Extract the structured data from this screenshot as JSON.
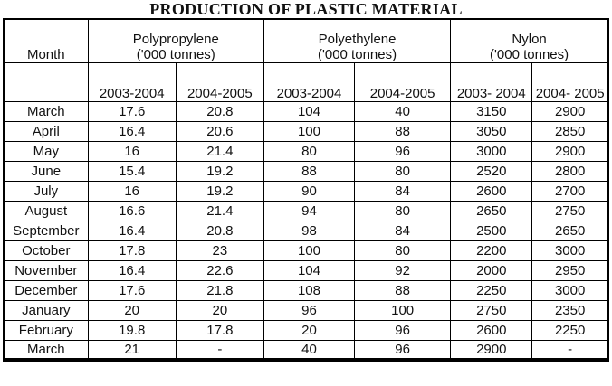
{
  "page": {
    "title": "PRODUCTION OF PLASTIC MATERIAL"
  },
  "table": {
    "month_header": "Month",
    "empty_header": "",
    "groups": [
      {
        "name": "Polypropylene",
        "unit": "('000 tonnes)"
      },
      {
        "name": "Polyethylene",
        "unit": "('000 tonnes)"
      },
      {
        "name": "Nylon",
        "unit": "('000 tonnes)"
      }
    ],
    "subheaders": [
      "2003-2004",
      "2004-2005",
      "2003-2004",
      "2004-2005",
      "2003-\n2004",
      "2004-\n2005"
    ]
  },
  "chart_data": {
    "type": "table",
    "title": "PRODUCTION OF PLASTIC MATERIAL",
    "columns": [
      "Month",
      "Polypropylene ('000 tonnes) 2003-2004",
      "Polypropylene ('000 tonnes) 2004-2005",
      "Polyethylene ('000 tonnes) 2003-2004",
      "Polyethylene ('000 tonnes) 2004-2005",
      "Nylon ('000 tonnes) 2003-2004",
      "Nylon ('000 tonnes) 2004-2005"
    ],
    "rows": [
      [
        "March",
        "17.6",
        "20.8",
        "104",
        "40",
        "3150",
        "2900"
      ],
      [
        "April",
        "16.4",
        "20.6",
        "100",
        "88",
        "3050",
        "2850"
      ],
      [
        "May",
        "16",
        "21.4",
        "80",
        "96",
        "3000",
        "2900"
      ],
      [
        "June",
        "15.4",
        "19.2",
        "88",
        "80",
        "2520",
        "2800"
      ],
      [
        "July",
        "16",
        "19.2",
        "90",
        "84",
        "2600",
        "2700"
      ],
      [
        "August",
        "16.6",
        "21.4",
        "94",
        "80",
        "2650",
        "2750"
      ],
      [
        "September",
        "16.4",
        "20.8",
        "98",
        "84",
        "2500",
        "2650"
      ],
      [
        "October",
        "17.8",
        "23",
        "100",
        "80",
        "2200",
        "3000"
      ],
      [
        "November",
        "16.4",
        "22.6",
        "104",
        "92",
        "2000",
        "2950"
      ],
      [
        "December",
        "17.6",
        "21.8",
        "108",
        "88",
        "2250",
        "3000"
      ],
      [
        "January",
        "20",
        "20",
        "96",
        "100",
        "2750",
        "2350"
      ],
      [
        "February",
        "19.8",
        "17.8",
        "20",
        "96",
        "2600",
        "2250"
      ],
      [
        "March",
        "21",
        "-",
        "40",
        "96",
        "2900",
        "-"
      ]
    ]
  }
}
